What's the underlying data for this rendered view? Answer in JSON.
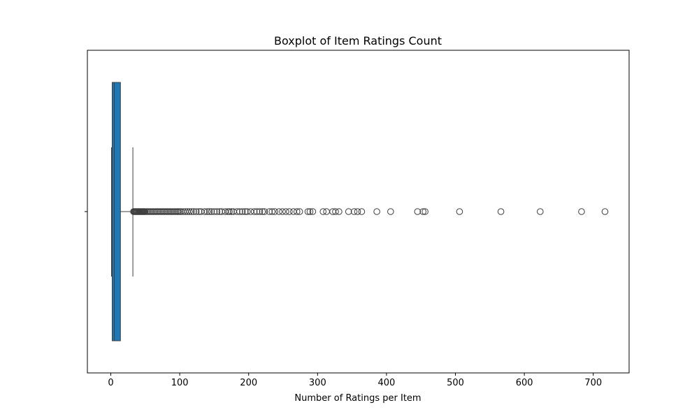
{
  "chart_data": {
    "type": "boxplot",
    "orientation": "horizontal",
    "title": "Boxplot of Item Ratings Count",
    "xlabel": "Number of Ratings per Item",
    "ylabel": "",
    "xlim": [
      -34,
      752
    ],
    "xticks": [
      0,
      100,
      200,
      300,
      400,
      500,
      600,
      700
    ],
    "xtick_labels": [
      "0",
      "100",
      "200",
      "300",
      "400",
      "500",
      "600",
      "700"
    ],
    "grid": false,
    "box_color": "#1f77b4",
    "box": {
      "whisker_low": 1,
      "q1": 2,
      "median": 5,
      "q3": 14,
      "whisker_high": 32
    },
    "outliers": [
      33,
      34,
      35,
      36,
      37,
      38,
      39,
      40,
      41,
      42,
      43,
      44,
      45,
      46,
      47,
      48,
      49,
      50,
      52,
      54,
      56,
      58,
      60,
      62,
      64,
      66,
      68,
      70,
      72,
      74,
      76,
      78,
      80,
      82,
      84,
      86,
      88,
      90,
      92,
      94,
      96,
      98,
      100,
      102,
      105,
      108,
      111,
      114,
      117,
      120,
      124,
      128,
      131,
      136,
      140,
      143,
      146,
      150,
      154,
      158,
      161,
      166,
      170,
      172,
      175,
      178,
      183,
      187,
      191,
      195,
      198,
      203,
      208,
      212,
      216,
      220,
      223,
      230,
      234,
      238,
      244,
      249,
      254,
      259,
      265,
      270,
      274,
      286,
      289,
      293,
      308,
      313,
      322,
      326,
      331,
      345,
      353,
      358,
      364,
      386,
      406,
      445,
      453,
      456,
      506,
      566,
      623,
      683,
      717
    ]
  }
}
